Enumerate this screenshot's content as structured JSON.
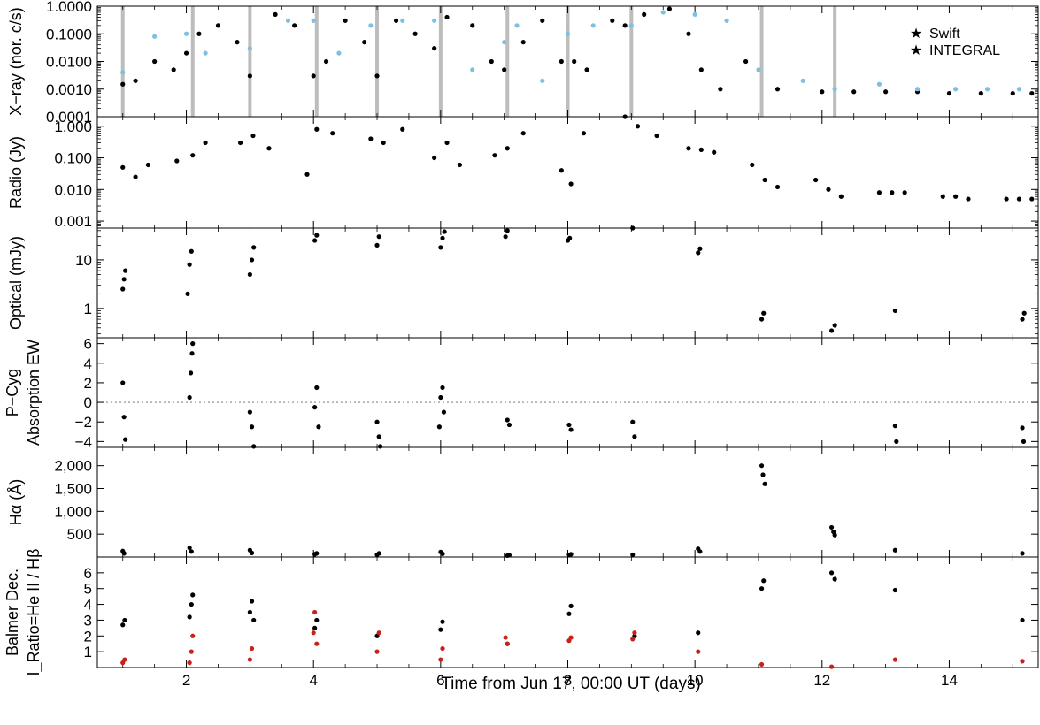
{
  "figure": {
    "xlabel": "Time from Jun 17, 00:00 UT (days)",
    "xlim": [
      0.6,
      15.4
    ],
    "xticks": [
      2,
      4,
      6,
      8,
      10,
      12,
      14
    ],
    "xtick_labels": [
      "2",
      "4",
      "6",
      "8",
      "10",
      "12",
      "14"
    ]
  },
  "chart_data": [
    {
      "type": "scatter",
      "panel": "xray",
      "ylabel": "X−ray (nor. c/s)",
      "yscale": "log",
      "ylim": [
        0.0001,
        1.0
      ],
      "yticks": [
        0.0001,
        0.001,
        0.01,
        0.1,
        1.0
      ],
      "ytick_labels": [
        "0.0001",
        "0.0010",
        "0.0100",
        "0.1000",
        "1.0000"
      ],
      "legend": {
        "position": "top-right",
        "entries": [
          "Swift",
          "INTEGRAL"
        ]
      },
      "gap_days": [
        1.0,
        2.1,
        3.0,
        4.05,
        5.0,
        6.0,
        7.05,
        8.0,
        9.0,
        11.05,
        12.2
      ],
      "series": [
        {
          "name": "INTEGRAL",
          "color": "#000000",
          "x": [
            1.0,
            1.2,
            1.5,
            1.8,
            2.0,
            2.2,
            2.5,
            2.8,
            3.0,
            3.4,
            3.7,
            4.0,
            4.2,
            4.5,
            4.8,
            5.0,
            5.3,
            5.6,
            5.9,
            6.1,
            6.5,
            6.8,
            7.0,
            7.3,
            7.6,
            7.9,
            8.1,
            8.3,
            8.7,
            8.9,
            9.2,
            9.6,
            9.9,
            10.1,
            10.4,
            10.8,
            11.3,
            12.0,
            12.5,
            13.0,
            13.5,
            14.0,
            14.5,
            15.0,
            15.3
          ],
          "y": [
            0.0015,
            0.002,
            0.01,
            0.005,
            0.02,
            0.1,
            0.2,
            0.05,
            0.003,
            0.5,
            0.2,
            0.003,
            0.01,
            0.3,
            0.05,
            0.003,
            0.3,
            0.1,
            0.03,
            0.4,
            0.2,
            0.01,
            0.005,
            0.05,
            0.3,
            0.01,
            0.01,
            0.005,
            0.3,
            0.2,
            0.5,
            0.8,
            0.1,
            0.005,
            0.001,
            0.01,
            0.001,
            0.0008,
            0.0008,
            0.0008,
            0.0008,
            0.0007,
            0.0007,
            0.0007,
            0.0007
          ]
        },
        {
          "name": "Swift",
          "color": "#7ec0e0",
          "x": [
            1.0,
            1.5,
            2.0,
            2.3,
            3.0,
            3.6,
            4.0,
            4.4,
            4.9,
            5.4,
            5.9,
            6.5,
            7.0,
            7.2,
            7.6,
            8.0,
            8.4,
            9.0,
            9.5,
            10.0,
            10.5,
            11.0,
            11.7,
            12.2,
            12.9,
            13.5,
            14.1,
            14.6,
            15.1
          ],
          "y": [
            0.004,
            0.08,
            0.1,
            0.02,
            0.03,
            0.3,
            0.3,
            0.02,
            0.2,
            0.3,
            0.3,
            0.005,
            0.05,
            0.2,
            0.002,
            0.1,
            0.2,
            0.2,
            0.6,
            0.5,
            0.3,
            0.005,
            0.002,
            0.001,
            0.0015,
            0.001,
            0.001,
            0.001,
            0.001
          ]
        }
      ]
    },
    {
      "type": "scatter",
      "panel": "radio",
      "ylabel": "Radio (Jy)",
      "yscale": "log",
      "ylim": [
        0.0006,
        2.0
      ],
      "yticks": [
        0.001,
        0.01,
        0.1,
        1.0
      ],
      "ytick_labels": [
        "0.001",
        "0.010",
        "0.100",
        "1.000"
      ],
      "series": [
        {
          "name": "",
          "color": "#000000",
          "x": [
            1.0,
            1.2,
            1.4,
            1.85,
            2.1,
            2.3,
            2.85,
            3.05,
            3.3,
            3.9,
            4.05,
            4.3,
            4.9,
            5.1,
            5.4,
            5.9,
            6.1,
            6.3,
            6.85,
            7.05,
            7.3,
            7.9,
            8.05,
            8.25,
            8.9,
            9.1,
            9.4,
            9.9,
            10.1,
            10.3,
            10.9,
            11.1,
            11.3,
            11.9,
            12.1,
            12.3,
            12.9,
            13.1,
            13.3,
            13.9,
            14.1,
            14.3,
            14.9,
            15.1,
            15.3
          ],
          "y": [
            0.05,
            0.025,
            0.06,
            0.08,
            0.12,
            0.3,
            0.3,
            0.5,
            0.2,
            0.03,
            0.8,
            0.6,
            0.4,
            0.3,
            0.8,
            0.1,
            0.3,
            0.06,
            0.12,
            0.2,
            0.6,
            0.04,
            0.015,
            0.6,
            2.0,
            1.0,
            0.5,
            0.2,
            0.18,
            0.15,
            0.06,
            0.02,
            0.012,
            0.02,
            0.01,
            0.006,
            0.008,
            0.008,
            0.008,
            0.006,
            0.006,
            0.005,
            0.005,
            0.005,
            0.005
          ]
        }
      ]
    },
    {
      "type": "scatter",
      "panel": "optical",
      "ylabel": "Optical (mJy)",
      "yscale": "log",
      "ylim": [
        0.25,
        45
      ],
      "yticks": [
        1,
        10
      ],
      "ytick_labels": [
        "1",
        "10"
      ],
      "series": [
        {
          "name": "",
          "color": "#000000",
          "x": [
            1.0,
            1.02,
            1.04,
            2.02,
            2.05,
            2.08,
            3.0,
            3.03,
            3.06,
            4.02,
            4.05,
            5.0,
            5.03,
            6.0,
            6.03,
            6.06,
            7.02,
            7.05,
            8.0,
            8.03,
            9.02,
            10.05,
            10.08,
            11.05,
            11.08,
            12.15,
            12.2,
            13.15,
            15.15,
            15.18
          ],
          "y": [
            2.5,
            4,
            6,
            2,
            8,
            15,
            5,
            10,
            18,
            25,
            32,
            20,
            30,
            18,
            28,
            38,
            30,
            40,
            25,
            28,
            45,
            14,
            17,
            0.6,
            0.8,
            0.35,
            0.45,
            0.9,
            0.6,
            0.8
          ]
        }
      ]
    },
    {
      "type": "scatter",
      "panel": "pcyg",
      "ylabel": [
        "P−Cyg",
        "Absorption EW"
      ],
      "ylim": [
        -4.6,
        6.6
      ],
      "yticks": [
        -4,
        -2,
        0,
        2,
        4,
        6
      ],
      "ytick_labels": [
        "−4",
        "−2",
        "0",
        "2",
        "4",
        "6"
      ],
      "zero_line": true,
      "series": [
        {
          "name": "",
          "color": "#000000",
          "x": [
            1.0,
            1.02,
            1.04,
            2.05,
            2.07,
            2.09,
            2.1,
            3.0,
            3.03,
            3.06,
            4.02,
            4.05,
            4.08,
            5.0,
            5.03,
            5.05,
            5.98,
            6.0,
            6.03,
            6.05,
            7.05,
            7.08,
            8.02,
            8.05,
            9.02,
            9.05,
            13.15,
            13.17,
            15.15,
            15.17
          ],
          "y": [
            2.0,
            -1.5,
            -3.8,
            0.5,
            3.0,
            5.0,
            6.0,
            -1.0,
            -2.5,
            -4.5,
            -0.5,
            1.5,
            -2.5,
            -2.0,
            -3.5,
            -4.5,
            -2.5,
            0.5,
            1.5,
            -1.0,
            -1.8,
            -2.3,
            -2.3,
            -2.8,
            -2.0,
            -3.5,
            -2.4,
            -4.0,
            -2.6,
            -4.0
          ]
        }
      ]
    },
    {
      "type": "scatter",
      "panel": "halpha",
      "ylabel": "Hα (Å)",
      "ylim": [
        0,
        2400
      ],
      "yticks": [
        500,
        1000,
        1500,
        2000
      ],
      "ytick_labels": [
        "500",
        "1,000",
        "1,500",
        "2,000"
      ],
      "series": [
        {
          "name": "",
          "color": "#000000",
          "x": [
            1.0,
            1.02,
            2.05,
            2.08,
            3.0,
            3.03,
            4.02,
            4.05,
            5.0,
            5.03,
            6.0,
            6.03,
            7.05,
            7.08,
            8.02,
            8.05,
            9.02,
            10.05,
            10.08,
            11.05,
            11.07,
            11.1,
            12.15,
            12.18,
            12.2,
            13.15,
            15.15
          ],
          "y": [
            130,
            80,
            200,
            120,
            150,
            90,
            60,
            80,
            50,
            80,
            110,
            70,
            30,
            40,
            50,
            60,
            50,
            180,
            120,
            2000,
            1800,
            1600,
            650,
            550,
            480,
            150,
            80
          ]
        }
      ]
    },
    {
      "type": "scatter",
      "panel": "balmer",
      "ylabel": [
        "Balmer Dec.",
        "I_Ratio=He II / Hβ"
      ],
      "ylabel_colors": [
        "#000000",
        "#c8201a"
      ],
      "ylim": [
        0,
        7
      ],
      "yticks": [
        1,
        2,
        3,
        4,
        5,
        6
      ],
      "ytick_labels": [
        "1",
        "2",
        "3",
        "4",
        "5",
        "6"
      ],
      "series": [
        {
          "name": "Balmer Dec.",
          "color": "#000000",
          "x": [
            1.0,
            1.03,
            2.05,
            2.08,
            2.1,
            3.0,
            3.03,
            3.06,
            4.02,
            4.05,
            5.0,
            6.0,
            6.03,
            7.05,
            8.02,
            8.05,
            9.05,
            10.05,
            11.05,
            11.08,
            12.15,
            12.2,
            13.15,
            15.15
          ],
          "y": [
            2.7,
            3.0,
            3.2,
            4.0,
            4.6,
            3.5,
            4.2,
            3.0,
            2.5,
            3.0,
            2.0,
            2.4,
            2.9,
            1.5,
            3.4,
            3.9,
            2.0,
            2.2,
            5.0,
            5.5,
            6.0,
            5.6,
            4.9,
            3.0
          ]
        },
        {
          "name": "I_Ratio=He II / Hβ",
          "color": "#c8201a",
          "x": [
            1.0,
            1.03,
            2.05,
            2.08,
            2.1,
            3.0,
            3.03,
            4.0,
            4.02,
            4.05,
            5.0,
            5.03,
            6.0,
            6.03,
            7.02,
            7.05,
            8.02,
            8.05,
            9.02,
            9.05,
            10.05,
            11.05,
            12.15,
            13.15,
            15.15
          ],
          "y": [
            0.3,
            0.5,
            0.3,
            1.0,
            2.0,
            0.5,
            1.2,
            2.2,
            3.5,
            1.5,
            1.0,
            2.2,
            0.5,
            1.2,
            1.9,
            1.5,
            1.7,
            1.9,
            1.8,
            2.2,
            1.0,
            0.2,
            0.05,
            0.5,
            0.4
          ]
        }
      ]
    }
  ]
}
